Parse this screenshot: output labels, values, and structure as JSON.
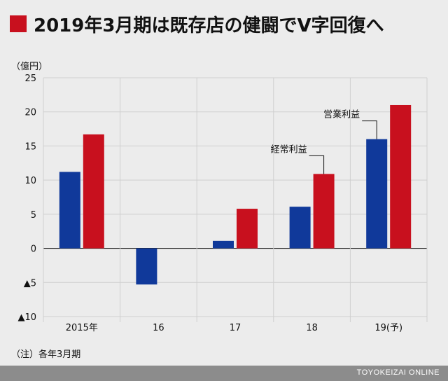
{
  "header": {
    "title": "2019年3月期は既存店の健闘でV字回復へ"
  },
  "colors": {
    "accent": "#c8101e",
    "operating": "#10399a",
    "ordinary": "#c8101e"
  },
  "chart_data": {
    "type": "bar",
    "unit_label": "（億円）",
    "categories": [
      "2015年",
      "16",
      "17",
      "18",
      "19(予)"
    ],
    "series": [
      {
        "name": "営業利益",
        "values": [
          11.2,
          -5.3,
          1.1,
          6.1,
          16.0
        ]
      },
      {
        "name": "経常利益",
        "values": [
          16.7,
          null,
          5.8,
          10.9,
          21.0
        ]
      }
    ],
    "ylim": [
      -10,
      25
    ],
    "yticks": [
      {
        "value": 25,
        "label": "25"
      },
      {
        "value": 20,
        "label": "20"
      },
      {
        "value": 15,
        "label": "15"
      },
      {
        "value": 10,
        "label": "10"
      },
      {
        "value": 5,
        "label": "5"
      },
      {
        "value": 0,
        "label": "0"
      },
      {
        "value": -5,
        "label": "▲5"
      },
      {
        "value": -10,
        "label": "▲10"
      }
    ],
    "annotations": [
      {
        "text": "営業利益",
        "series": 0,
        "category": 4
      },
      {
        "text": "経常利益",
        "series": 1,
        "category": 3
      }
    ],
    "grid": true,
    "xlabel": "",
    "ylabel": ""
  },
  "note": "（注）各年3月期",
  "footer": {
    "credit": "TOYOKEIZAI ONLINE"
  }
}
